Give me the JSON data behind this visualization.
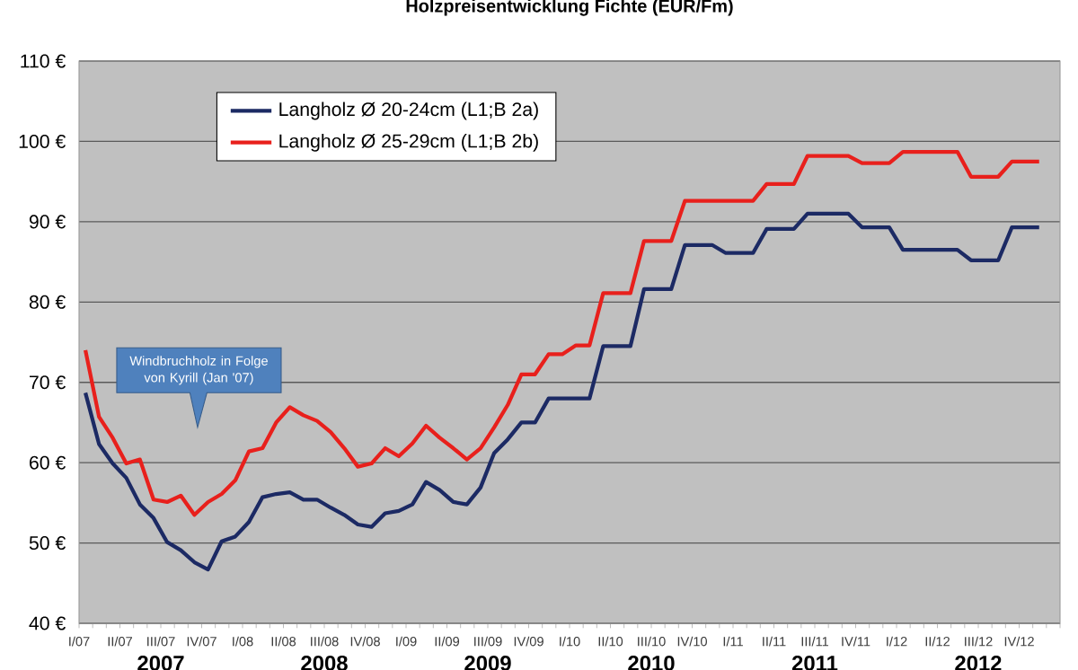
{
  "chart_data": {
    "type": "line",
    "title": "Holzpreisentwicklung Fichte (EUR/Fm)",
    "xlim": [
      "2007-01",
      "2013-01"
    ],
    "ylim": [
      40,
      110
    ],
    "yticks": [
      {
        "value": 40,
        "label": "40 €"
      },
      {
        "value": 50,
        "label": "50 €"
      },
      {
        "value": 60,
        "label": "60 €"
      },
      {
        "value": 70,
        "label": "70 €"
      },
      {
        "value": 80,
        "label": "80 €"
      },
      {
        "value": 90,
        "label": "90 €"
      },
      {
        "value": 100,
        "label": "100 €"
      },
      {
        "value": 110,
        "label": "110 €"
      }
    ],
    "xticks": [
      {
        "value": "2007-01",
        "label": "I/07"
      },
      {
        "value": "2007-02",
        "label": null
      },
      {
        "value": "2007-03",
        "label": null
      },
      {
        "value": "2007-04",
        "label": "II/07"
      },
      {
        "value": "2007-05",
        "label": null
      },
      {
        "value": "2007-06",
        "label": null
      },
      {
        "value": "2007-07",
        "label": "III/07"
      },
      {
        "value": "2007-08",
        "label": null
      },
      {
        "value": "2007-09",
        "label": null
      },
      {
        "value": "2007-10",
        "label": "IV/07"
      },
      {
        "value": "2007-11",
        "label": null
      },
      {
        "value": "2007-12",
        "label": null
      },
      {
        "value": "2008-01",
        "label": "I/08"
      },
      {
        "value": "2008-02",
        "label": null
      },
      {
        "value": "2008-03",
        "label": null
      },
      {
        "value": "2008-04",
        "label": "II/08"
      },
      {
        "value": "2008-05",
        "label": null
      },
      {
        "value": "2008-06",
        "label": null
      },
      {
        "value": "2008-07",
        "label": "III/08"
      },
      {
        "value": "2008-08",
        "label": null
      },
      {
        "value": "2008-09",
        "label": null
      },
      {
        "value": "2008-10",
        "label": "IV/08"
      },
      {
        "value": "2008-11",
        "label": null
      },
      {
        "value": "2008-12",
        "label": null
      },
      {
        "value": "2009-01",
        "label": "I/09"
      },
      {
        "value": "2009-02",
        "label": null
      },
      {
        "value": "2009-03",
        "label": null
      },
      {
        "value": "2009-04",
        "label": "II/09"
      },
      {
        "value": "2009-05",
        "label": null
      },
      {
        "value": "2009-06",
        "label": null
      },
      {
        "value": "2009-07",
        "label": "III/09"
      },
      {
        "value": "2009-08",
        "label": null
      },
      {
        "value": "2009-09",
        "label": null
      },
      {
        "value": "2009-10",
        "label": "IV/09"
      },
      {
        "value": "2009-11",
        "label": null
      },
      {
        "value": "2009-12",
        "label": null
      },
      {
        "value": "2010-01",
        "label": "I/10"
      },
      {
        "value": "2010-02",
        "label": null
      },
      {
        "value": "2010-03",
        "label": null
      },
      {
        "value": "2010-04",
        "label": "II/10"
      },
      {
        "value": "2010-05",
        "label": null
      },
      {
        "value": "2010-06",
        "label": null
      },
      {
        "value": "2010-07",
        "label": "III/10"
      },
      {
        "value": "2010-08",
        "label": null
      },
      {
        "value": "2010-09",
        "label": null
      },
      {
        "value": "2010-10",
        "label": "IV/10"
      },
      {
        "value": "2010-11",
        "label": null
      },
      {
        "value": "2010-12",
        "label": null
      },
      {
        "value": "2011-01",
        "label": "I/11"
      },
      {
        "value": "2011-02",
        "label": null
      },
      {
        "value": "2011-03",
        "label": null
      },
      {
        "value": "2011-04",
        "label": "II/11"
      },
      {
        "value": "2011-05",
        "label": null
      },
      {
        "value": "2011-06",
        "label": null
      },
      {
        "value": "2011-07",
        "label": "III/11"
      },
      {
        "value": "2011-08",
        "label": null
      },
      {
        "value": "2011-09",
        "label": null
      },
      {
        "value": "2011-10",
        "label": "IV/11"
      },
      {
        "value": "2011-11",
        "label": null
      },
      {
        "value": "2011-12",
        "label": null
      },
      {
        "value": "2012-01",
        "label": "I/12"
      },
      {
        "value": "2012-02",
        "label": null
      },
      {
        "value": "2012-03",
        "label": null
      },
      {
        "value": "2012-04",
        "label": "II/12"
      },
      {
        "value": "2012-05",
        "label": null
      },
      {
        "value": "2012-06",
        "label": null
      },
      {
        "value": "2012-07",
        "label": "III/12"
      },
      {
        "value": "2012-08",
        "label": null
      },
      {
        "value": "2012-09",
        "label": null
      },
      {
        "value": "2012-10",
        "label": "IV/12"
      },
      {
        "value": "2012-11",
        "label": null
      },
      {
        "value": "2012-12",
        "label": null
      },
      {
        "value": "2013-01",
        "label": null
      }
    ],
    "grid": "y",
    "legend": "top left",
    "marker": "none",
    "line_style": "solid",
    "annotations": [
      "Windbruchholz in Folge von Kyrill (Jan '07)",
      "2007",
      "2008",
      "2009",
      "2010",
      "2011",
      "2012"
    ],
    "series": [
      {
        "name": "Langholz Ø 20-24cm (L1;B 2a)",
        "color": "#1c2a64",
        "x": [
          "2007-01-15",
          "2007-02-15",
          "2007-03-15",
          "2007-04-15",
          "2007-05-15",
          "2007-06-15",
          "2007-07-15",
          "2007-08-15",
          "2007-09-15",
          "2007-10-15",
          "2007-11-15",
          "2007-12-15",
          "2008-01-15",
          "2008-02-15",
          "2008-03-15",
          "2008-04-15",
          "2008-05-15",
          "2008-06-15",
          "2008-07-15",
          "2008-08-15",
          "2008-09-15",
          "2008-10-15",
          "2008-11-15",
          "2008-12-15",
          "2009-01-15",
          "2009-02-15",
          "2009-03-15",
          "2009-04-15",
          "2009-05-15",
          "2009-06-15",
          "2009-07-15",
          "2009-08-15",
          "2009-09-15",
          "2009-10-15",
          "2009-11-15",
          "2010-02-15",
          "2010-03-15",
          "2010-05-15",
          "2010-06-15",
          "2010-08-15",
          "2010-09-15",
          "2010-11-15",
          "2010-12-15",
          "2011-02-15",
          "2011-03-15",
          "2011-05-15",
          "2011-06-15",
          "2011-09-15",
          "2011-10-15",
          "2011-12-15",
          "2012-01-15",
          "2012-05-15",
          "2012-06-15",
          "2012-08-15",
          "2012-09-15",
          "2012-11-15"
        ],
        "values": [
          68.7,
          62.3,
          59.9,
          58.1,
          54.8,
          53.1,
          50.1,
          49.1,
          47.6,
          46.7,
          50.2,
          50.8,
          52.6,
          55.7,
          56.1,
          56.3,
          55.4,
          55.4,
          54.4,
          53.5,
          52.3,
          52.0,
          53.7,
          54.0,
          54.8,
          57.6,
          56.6,
          55.1,
          54.8,
          56.9,
          61.2,
          62.9,
          65.0,
          65.0,
          68.0,
          68.0,
          74.5,
          74.5,
          81.6,
          81.6,
          87.1,
          87.1,
          86.1,
          86.1,
          89.1,
          89.1,
          91.0,
          91.0,
          89.3,
          89.3,
          86.5,
          86.5,
          85.2,
          85.2,
          89.3,
          89.3
        ]
      },
      {
        "name": "Langholz Ø 25-29cm (L1;B 2b)",
        "color": "#e8201c",
        "x": [
          "2007-01-15",
          "2007-02-15",
          "2007-03-15",
          "2007-04-15",
          "2007-05-15",
          "2007-06-15",
          "2007-07-15",
          "2007-08-15",
          "2007-09-15",
          "2007-10-15",
          "2007-11-15",
          "2007-12-15",
          "2008-01-15",
          "2008-02-15",
          "2008-03-15",
          "2008-04-15",
          "2008-05-15",
          "2008-06-15",
          "2008-07-15",
          "2008-08-15",
          "2008-09-15",
          "2008-10-15",
          "2008-11-15",
          "2008-12-15",
          "2009-01-15",
          "2009-02-15",
          "2009-03-15",
          "2009-04-15",
          "2009-05-15",
          "2009-06-15",
          "2009-07-15",
          "2009-08-15",
          "2009-09-15",
          "2009-10-15",
          "2009-11-15",
          "2009-12-15",
          "2010-01-15",
          "2010-02-15",
          "2010-03-15",
          "2010-05-15",
          "2010-06-15",
          "2010-08-15",
          "2010-09-15",
          "2011-02-15",
          "2011-03-15",
          "2011-05-15",
          "2011-06-15",
          "2011-09-15",
          "2011-10-15",
          "2011-12-15",
          "2012-01-15",
          "2012-05-15",
          "2012-06-15",
          "2012-08-15",
          "2012-09-15",
          "2012-11-15"
        ],
        "values": [
          74.0,
          65.7,
          63.1,
          59.9,
          60.4,
          55.4,
          55.1,
          55.9,
          53.5,
          55.1,
          56.1,
          57.8,
          61.4,
          61.8,
          65.0,
          66.9,
          65.9,
          65.2,
          63.8,
          61.8,
          59.5,
          59.9,
          61.8,
          60.8,
          62.4,
          64.6,
          63.1,
          61.8,
          60.4,
          61.8,
          64.4,
          67.2,
          71.0,
          71.0,
          73.5,
          73.5,
          74.6,
          74.6,
          81.1,
          81.1,
          87.6,
          87.6,
          92.6,
          92.6,
          94.7,
          94.7,
          98.2,
          98.2,
          97.3,
          97.3,
          98.7,
          98.7,
          95.6,
          95.6,
          97.5,
          97.5
        ]
      }
    ]
  }
}
